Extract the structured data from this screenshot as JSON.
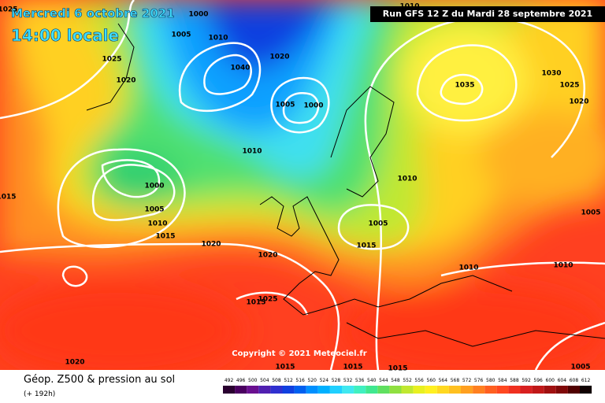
{
  "header": {
    "date": "Mercredi 6 octobre 2021",
    "time": "14:00 locale",
    "run": "Run GFS 12 Z du Mardi 28 septembre 2021"
  },
  "copyright": "Copyright © 2021 Meteociel.fr",
  "footer": {
    "title": "Géop. Z500 & pression au sol",
    "subtitle": "(+ 192h)"
  },
  "colorbar": {
    "labels": [
      492,
      496,
      500,
      504,
      508,
      512,
      516,
      520,
      524,
      528,
      532,
      536,
      540,
      544,
      548,
      552,
      556,
      560,
      564,
      568,
      572,
      576,
      580,
      584,
      588,
      592,
      596,
      600,
      604,
      608,
      612
    ],
    "colors": [
      "#2a0030",
      "#4a0060",
      "#6a1090",
      "#5020b0",
      "#3030d0",
      "#1040e0",
      "#0060f0",
      "#0090ff",
      "#00b0ff",
      "#20d0ff",
      "#40e8f0",
      "#40f0c0",
      "#40e890",
      "#60e060",
      "#90e040",
      "#c0e830",
      "#e8f020",
      "#fff020",
      "#ffd820",
      "#ffc020",
      "#ffa020",
      "#ff8020",
      "#ff6020",
      "#ff4820",
      "#f03020",
      "#d82020",
      "#c01818",
      "#a01010",
      "#800808",
      "#500000",
      "#100000"
    ]
  },
  "isobar_labels": [
    "1025",
    "1000",
    "1005",
    "1010",
    "1025",
    "1020",
    "1020",
    "1040",
    "1005",
    "1000",
    "1010",
    "1000",
    "1005",
    "1010",
    "1015",
    "1020",
    "1020",
    "1035",
    "1030",
    "1025",
    "1020",
    "1010",
    "1010",
    "1005",
    "1015",
    "1010",
    "1010",
    "1005",
    "1015",
    "1025",
    "1015",
    "1020",
    "1015",
    "1015",
    "1015",
    "1005"
  ]
}
